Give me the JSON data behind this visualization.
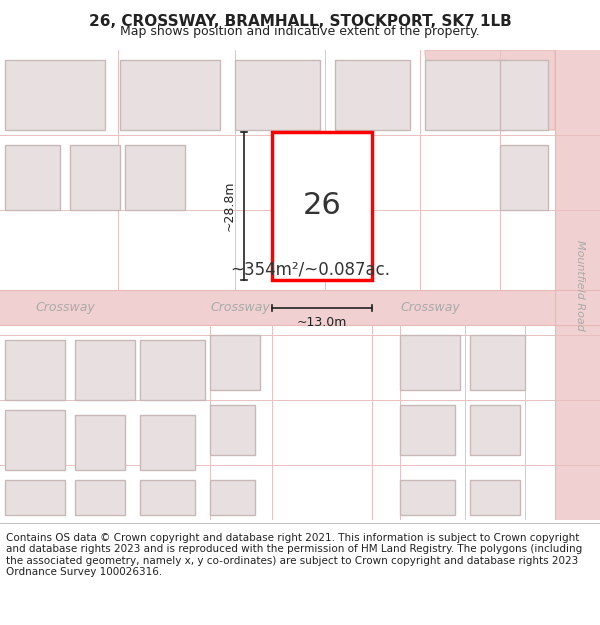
{
  "title": "26, CROSSWAY, BRAMHALL, STOCKPORT, SK7 1LB",
  "subtitle": "Map shows position and indicative extent of the property.",
  "area_text": "~354m²/~0.087ac.",
  "dim_width": "~13.0m",
  "dim_height": "~28.8m",
  "plot_number": "26",
  "footer": "Contains OS data © Crown copyright and database right 2021. This information is subject to Crown copyright and database rights 2023 and is reproduced with the permission of HM Land Registry. The polygons (including the associated geometry, namely x, y co-ordinates) are subject to Crown copyright and database rights 2023 Ordnance Survey 100026316.",
  "bg_color": "#ffffff",
  "map_bg": "#f5f0f0",
  "road_color": "#f0d0d0",
  "road_outline": "#e8b8b8",
  "building_fill": "#e8e0e0",
  "building_outline": "#c8b8b8",
  "highlight_fill": "#ffffff",
  "highlight_outline": "#ff0000",
  "dim_color": "#222222",
  "text_color_light": "#ccbbbb",
  "road_label_color": "#aaaaaa",
  "title_fontsize": 11,
  "subtitle_fontsize": 9,
  "footer_fontsize": 7.5
}
